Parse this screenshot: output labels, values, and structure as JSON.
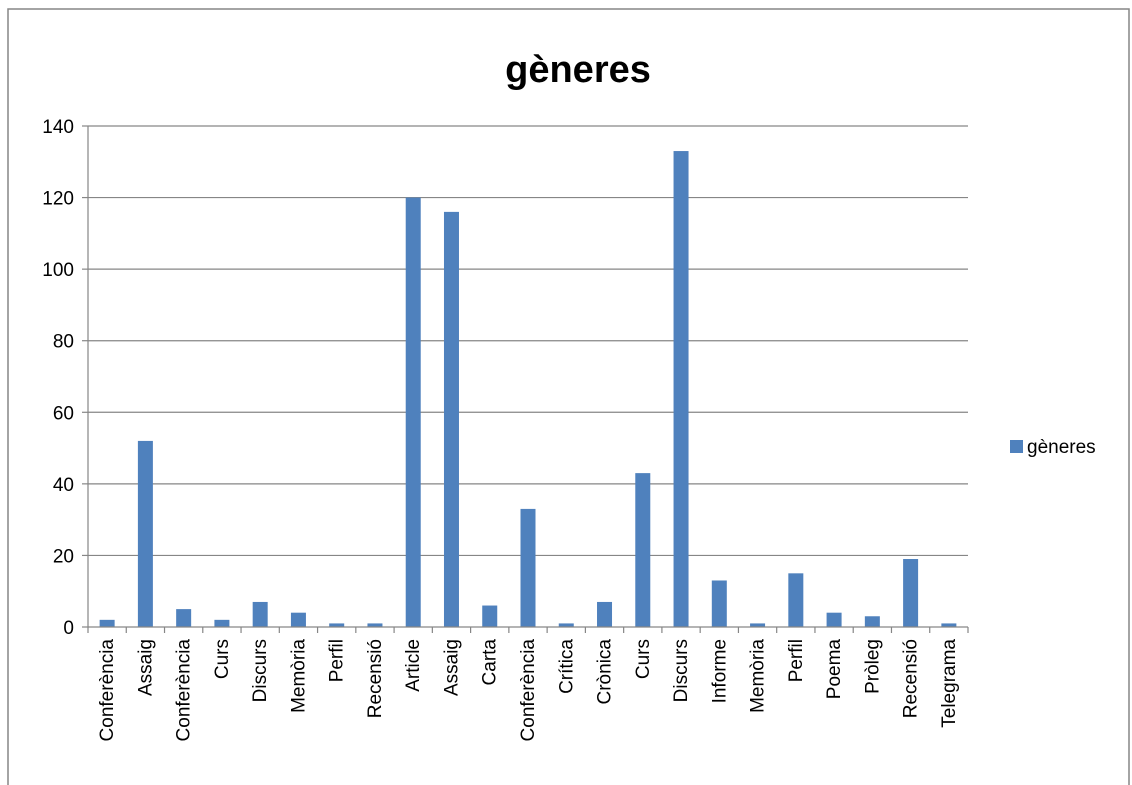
{
  "chart_data": {
    "type": "bar",
    "title": "gèneres",
    "xlabel": "",
    "ylabel": "",
    "ylim": [
      0,
      140
    ],
    "yticks": [
      0,
      20,
      40,
      60,
      80,
      100,
      120,
      140
    ],
    "grid": true,
    "legend_position": "right",
    "bar_color": "#4F81BD",
    "categories": [
      "Conferència",
      "Assaig",
      "Conferència",
      "Curs",
      "Discurs",
      "Memòria",
      "Perfil",
      "Recensió",
      "Article",
      "Assaig",
      "Carta",
      "Conferència",
      "Crítica",
      "Crònica",
      "Curs",
      "Discurs",
      "Informe",
      "Memòria",
      "Perfil",
      "Poema",
      "Pròleg",
      "Recensió",
      "Telegrama"
    ],
    "series": [
      {
        "name": "gèneres",
        "values": [
          2,
          52,
          5,
          2,
          7,
          4,
          1,
          1,
          120,
          116,
          6,
          33,
          1,
          7,
          43,
          133,
          13,
          1,
          15,
          4,
          3,
          19,
          1
        ]
      }
    ]
  }
}
